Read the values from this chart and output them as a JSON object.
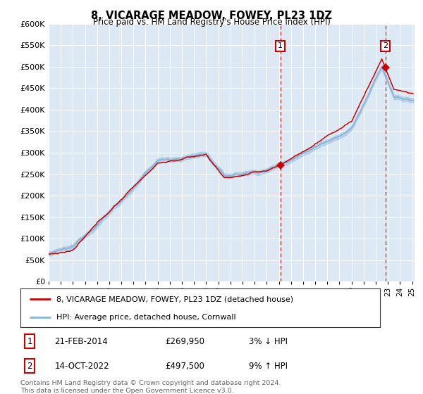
{
  "title": "8, VICARAGE MEADOW, FOWEY, PL23 1DZ",
  "subtitle": "Price paid vs. HM Land Registry's House Price Index (HPI)",
  "legend_line1": "8, VICARAGE MEADOW, FOWEY, PL23 1DZ (detached house)",
  "legend_line2": "HPI: Average price, detached house, Cornwall",
  "sale1_date": "21-FEB-2014",
  "sale1_price": "£269,950",
  "sale1_hpi": "3% ↓ HPI",
  "sale1_year": 2014.12,
  "sale1_value": 269950,
  "sale2_date": "14-OCT-2022",
  "sale2_price": "£497,500",
  "sale2_hpi": "9% ↑ HPI",
  "sale2_year": 2022.79,
  "sale2_value": 497500,
  "hpi_color": "#88b4d8",
  "price_color": "#cc0000",
  "plot_bg": "#dce9f5",
  "grid_color": "#ffffff",
  "ylim": [
    0,
    600000
  ],
  "yticks": [
    0,
    50000,
    100000,
    150000,
    200000,
    250000,
    300000,
    350000,
    400000,
    450000,
    500000,
    550000,
    600000
  ],
  "footer": "Contains HM Land Registry data © Crown copyright and database right 2024.\nThis data is licensed under the Open Government Licence v3.0.",
  "footnote_color": "#666666"
}
